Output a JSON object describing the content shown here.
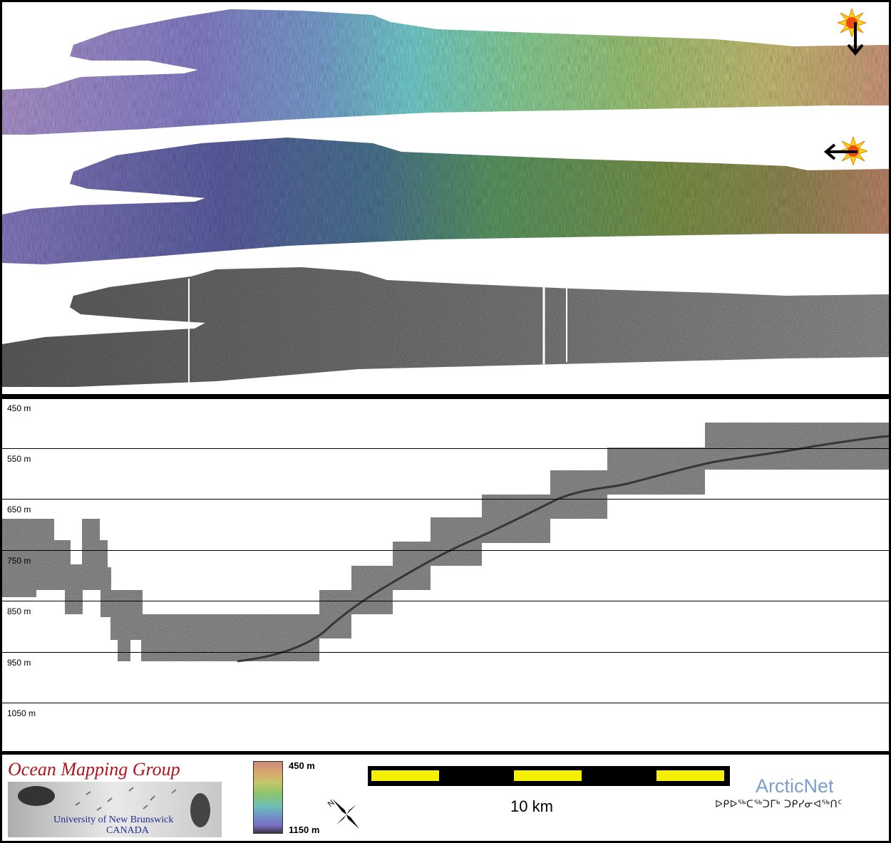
{
  "profile": {
    "depth_labels": [
      "450 m",
      "550 m",
      "650 m",
      "750 m",
      "850 m",
      "950 m",
      "1050 m"
    ]
  },
  "legend": {
    "logo": {
      "title": "Ocean Mapping Group",
      "university": "University of New Brunswick",
      "country": "CANADA"
    },
    "colorbar": {
      "top_label": "450 m",
      "bottom_label": "1150 m"
    },
    "north_letter": "N",
    "scale_label": "10 km",
    "partner": {
      "name": "ArcticNet",
      "syllabics": "ᐅᑭᐅᖅᑕᖅᑐᒥᒃ ᑐᑭᓯᓂᐊᖅᑎᑦ"
    }
  },
  "icons": {
    "sun_top": "sun-icon",
    "sun_middle": "sun-icon",
    "arrow_top": "arrow-down-icon",
    "arrow_middle": "arrow-left-icon"
  },
  "colors": {
    "title_red": "#b0141c",
    "university_blue": "#1f2f8c",
    "scale_yellow": "#f4f000",
    "arcticnet_blue": "#7a9fc8"
  }
}
